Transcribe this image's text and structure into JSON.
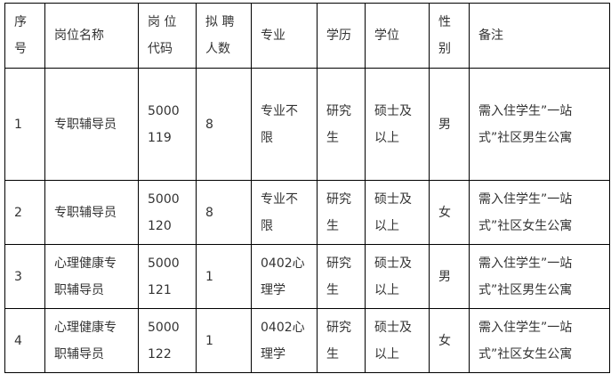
{
  "headers": [
    "序\n号",
    "岗位名称",
    "岗 位\n代码",
    "拟 聘\n人数",
    "专业",
    "学历",
    "学位",
    "性\n别",
    "备注"
  ],
  "rows": [
    [
      "1",
      "专职辅导员",
      "5000\n119",
      "8",
      "专业不\n限",
      "研究\n生",
      "硕士及\n以上",
      "男",
      "需入住学生”一站\n式”社区男生公寓"
    ],
    [
      "2",
      "专职辅导员",
      "5000\n120",
      "8",
      "专业不\n限",
      "研究\n生",
      "硕士及\n以上",
      "女",
      "需入住学生”一站\n式”社区女生公寓"
    ],
    [
      "3",
      "心理健康专\n职辅导员",
      "5000\n121",
      "1",
      "0402心\n理学",
      "研究\n生",
      "硕士及\n以上",
      "男",
      "需入住学生”一站\n式”社区男生公寓"
    ],
    [
      "4",
      "心理健康专\n职辅导员",
      "5000\n122",
      "1",
      "0402心\n理学",
      "研究\n生",
      "硕士及\n以上",
      "女",
      "需入住学生”一站\n式”社区女生公寓"
    ]
  ]
}
